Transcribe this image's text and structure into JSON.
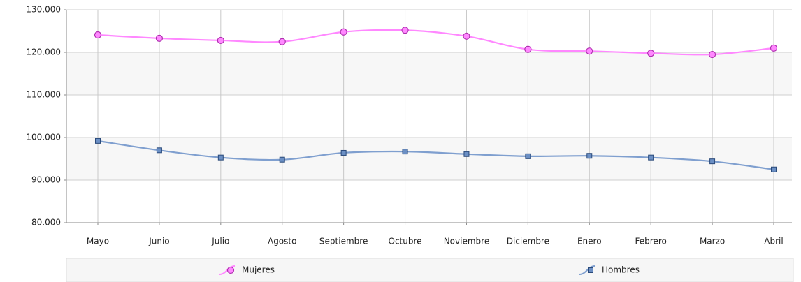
{
  "chart_data": {
    "type": "line",
    "smooth": true,
    "grid": true,
    "categories": [
      "Mayo",
      "Junio",
      "Julio",
      "Agosto",
      "Septiembre",
      "Octubre",
      "Noviembre",
      "Diciembre",
      "Enero",
      "Febrero",
      "Marzo",
      "Abril"
    ],
    "series": [
      {
        "name": "Mujeres",
        "color": "#ff88ff",
        "marker": "circle",
        "values": [
          124100,
          123300,
          122800,
          122500,
          124800,
          125200,
          123800,
          120700,
          120300,
          119800,
          119500,
          121000
        ]
      },
      {
        "name": "Hombres",
        "color": "#7f9fcf",
        "marker": "square",
        "values": [
          99200,
          97000,
          95300,
          94800,
          96400,
          96700,
          96100,
          95600,
          95700,
          95300,
          94400,
          92500
        ]
      }
    ],
    "ylim": [
      80000,
      130000
    ],
    "yticks": [
      {
        "value": 80000,
        "label": "80.000"
      },
      {
        "value": 90000,
        "label": "90.000"
      },
      {
        "value": 100000,
        "label": "100.000"
      },
      {
        "value": 110000,
        "label": "110.000"
      },
      {
        "value": 120000,
        "label": "120.000"
      },
      {
        "value": 130000,
        "label": "130.000"
      }
    ]
  }
}
